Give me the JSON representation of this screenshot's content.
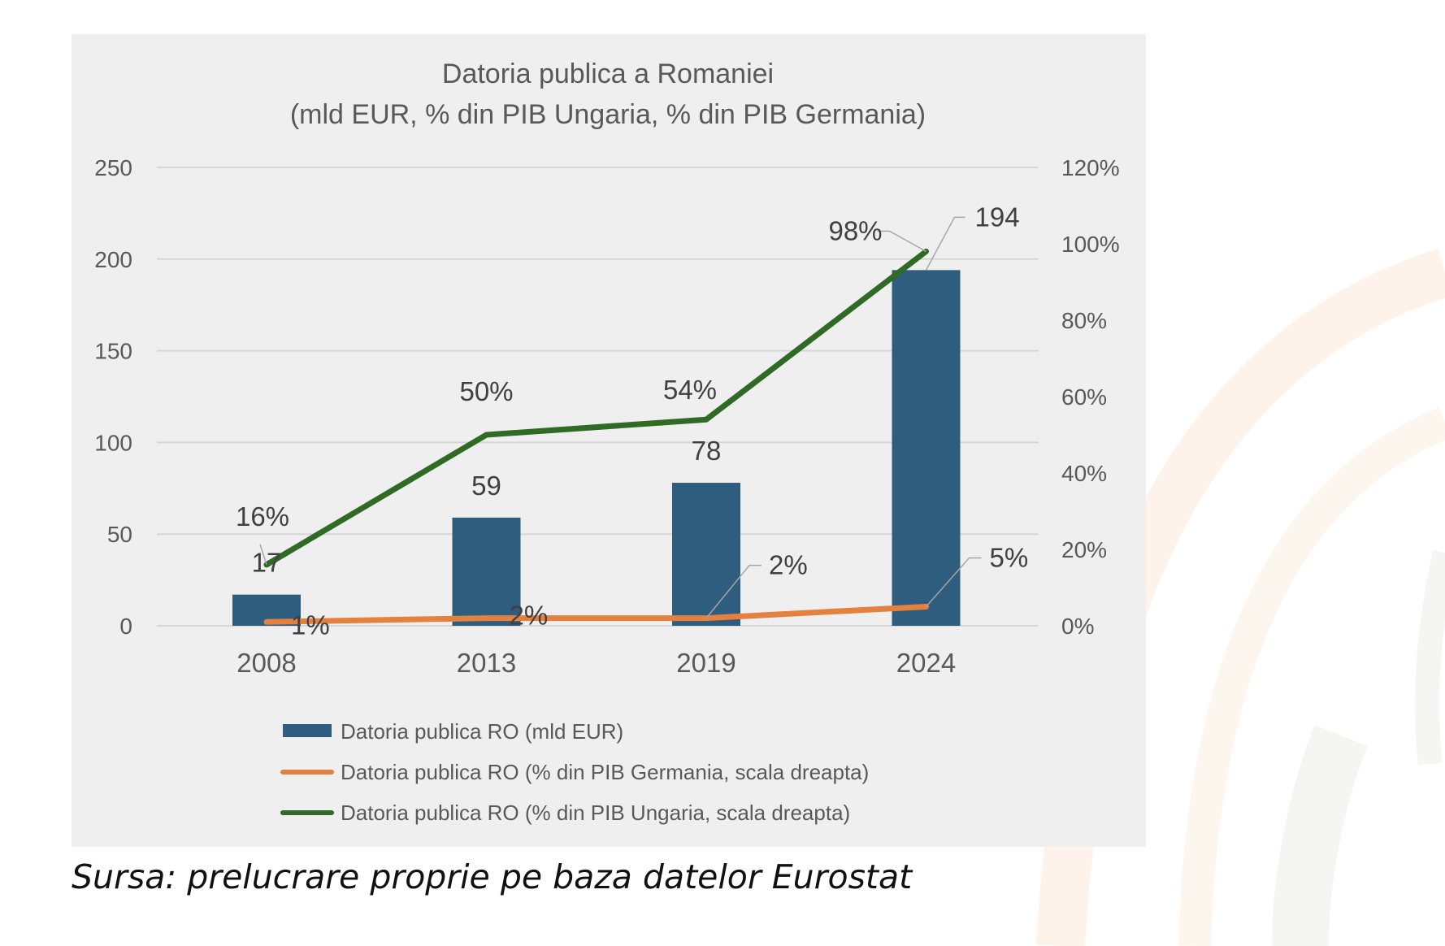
{
  "source_note": "Sursa: prelucrare proprie pe baza datelor Eurostat",
  "colors": {
    "bar": "#2e5d7e",
    "germania": "#e5813f",
    "ungaria": "#2f6b25",
    "panel": "#efefef",
    "grid": "#d6d6d6",
    "text": "#595959"
  },
  "chart_data": {
    "type": "bar",
    "title": "Datoria publica a Romaniei",
    "subtitle": "(mld EUR, % din PIB Ungaria, % din PIB Germania)",
    "categories": [
      "2008",
      "2013",
      "2019",
      "2024"
    ],
    "y_left": {
      "min": 0,
      "max": 250,
      "ticks": [
        "0",
        "50",
        "100",
        "150",
        "200",
        "250"
      ]
    },
    "y_right": {
      "min": 0,
      "max": 120,
      "ticks": [
        "0%",
        "20%",
        "40%",
        "60%",
        "80%",
        "100%",
        "120%"
      ]
    },
    "grid": true,
    "legend_position": "bottom",
    "series": [
      {
        "name": "Datoria publica RO (mld EUR)",
        "type": "bar",
        "axis": "left",
        "values": [
          17,
          59,
          78,
          194
        ],
        "labels": [
          "17",
          "59",
          "78",
          "194"
        ]
      },
      {
        "name": "Datoria publica RO (% din PIB Germania, scala dreapta)",
        "type": "line",
        "axis": "right",
        "values": [
          1,
          2,
          2,
          5
        ],
        "labels": [
          "1%",
          "2%",
          "2%",
          "5%"
        ]
      },
      {
        "name": "Datoria publica RO (% din PIB Ungaria, scala dreapta)",
        "type": "line",
        "axis": "right",
        "values": [
          16,
          50,
          54,
          98
        ],
        "labels": [
          "16%",
          "50%",
          "54%",
          "98%"
        ]
      }
    ]
  }
}
